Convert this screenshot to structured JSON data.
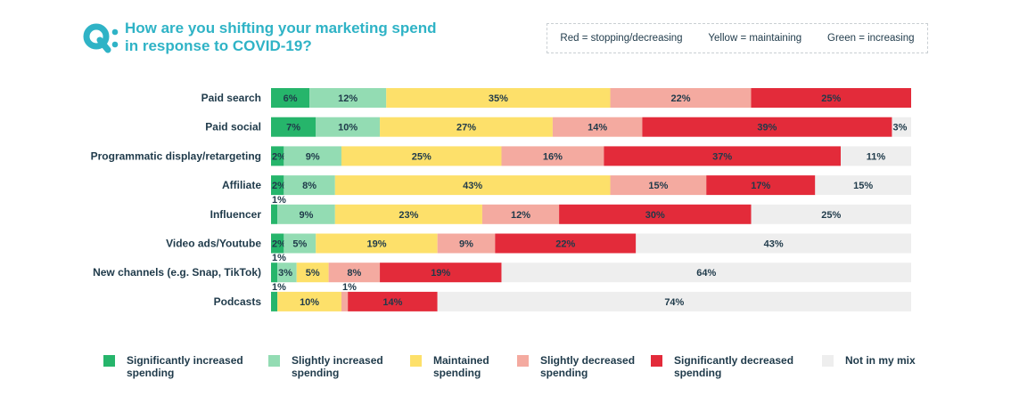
{
  "header": {
    "title_line1": "How are you shifting your marketing spend",
    "title_line2": "in response to COVID-19?",
    "logo_icon": "q-colon-icon"
  },
  "color_key": {
    "red": "Red = stopping/decreasing",
    "yellow": "Yellow = maintaining",
    "green": "Green = increasing"
  },
  "colors": {
    "sig_increase": "#26b56b",
    "slight_increase": "#93dcb3",
    "maintained": "#fde06a",
    "slight_decrease": "#f4aaa0",
    "sig_decrease": "#e32b3a",
    "not_in_mix": "#eeeeee",
    "accent": "#2fb3c6"
  },
  "legend": [
    {
      "label": "Significantly increased\nspending",
      "color": "#26b56b"
    },
    {
      "label": "Slightly increased\nspending",
      "color": "#93dcb3"
    },
    {
      "label": "Maintained\nspending",
      "color": "#fde06a"
    },
    {
      "label": "Slightly decreased\nspending",
      "color": "#f4aaa0"
    },
    {
      "label": "Significantly decreased\nspending",
      "color": "#e32b3a"
    },
    {
      "label": "Not in my mix",
      "color": "#eeeeee"
    }
  ],
  "chart_data": {
    "type": "bar",
    "orientation": "horizontal",
    "stacked": true,
    "title": "How are you shifting your marketing spend in response to COVID-19?",
    "xlim": [
      0,
      100
    ],
    "grid": false,
    "legend_position": "bottom",
    "categories": [
      "Paid search",
      "Paid social",
      "Programmatic display/retargeting",
      "Affiliate",
      "Influencer",
      "Video ads/Youtube",
      "New channels (e.g. Snap, TikTok)",
      "Podcasts"
    ],
    "series": [
      {
        "name": "Significantly increased spending",
        "values": [
          6,
          7,
          2,
          2,
          1,
          2,
          1,
          1
        ]
      },
      {
        "name": "Slightly increased spending",
        "values": [
          12,
          10,
          9,
          8,
          9,
          5,
          3,
          0
        ]
      },
      {
        "name": "Maintained spending",
        "values": [
          35,
          27,
          25,
          43,
          23,
          19,
          5,
          10
        ]
      },
      {
        "name": "Slightly decreased spending",
        "values": [
          22,
          14,
          16,
          15,
          12,
          9,
          8,
          1
        ]
      },
      {
        "name": "Significantly decreased spending",
        "values": [
          25,
          39,
          37,
          17,
          30,
          22,
          19,
          14
        ]
      },
      {
        "name": "Not in my mix",
        "values": [
          0,
          3,
          11,
          15,
          25,
          43,
          64,
          74
        ]
      }
    ]
  }
}
